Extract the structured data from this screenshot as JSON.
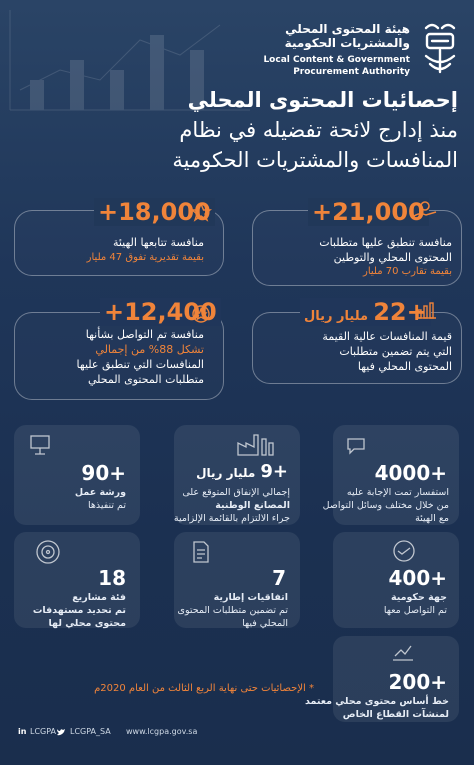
{
  "logo": {
    "ar_line1": "هيئة المحتوى المحلي",
    "ar_line2": "والمشتريات الحكومية",
    "en_line1": "Local Content & Government",
    "en_line2": "Procurement Authority"
  },
  "title": {
    "line1": "إحصائيات المحتوى المحلي",
    "line2": "منذ إدارج لائحة تفضيله في نظام",
    "line3": "المنافسات والمشتريات الحكومية"
  },
  "stats_top": [
    {
      "num": "+21,000",
      "l1": "منافسة تنطبق عليها متطلبات",
      "l2": "المحتوى المحلي والتوطين",
      "l3": "بقيمة تقارب 70 مليار"
    },
    {
      "num": "+18,000",
      "l1": "منافسة تتابعها الهيئة",
      "l2": "بقيمة تقديرية تفوق 47 مليار"
    },
    {
      "num": "+22",
      "num_suffix": "مليار ريال",
      "l1": "قيمة المنافسات عالية القيمة",
      "l2": "التي يتم تضمين متطلبات",
      "l3": "المحتوى المحلي فيها"
    },
    {
      "num": "+12,400",
      "l1": "منافسة تم التواصل بشأنها",
      "l2": "تشكل 88% من إجمالي",
      "l3": "المنافسات التي تنطبق عليها",
      "l4": "متطلبات المحتوى المحلي"
    }
  ],
  "tiles": [
    {
      "num": "4000+",
      "l1": "استفسار تمت الإجابة عليه",
      "l2": "من خلال مختلف وسائل التواصل",
      "l3": "مع الهيئة"
    },
    {
      "num": "+9",
      "num_suffix": "مليار ريال",
      "l1": "إجمالي الإنفاق المتوقع على",
      "l2": "المصانع الوطنية",
      "l3": "جراء الالتزام بالقائمة الإلزامية"
    },
    {
      "num": "90+",
      "l1": "ورشة عمل",
      "l2": "تم تنفيذها"
    },
    {
      "num": "400+",
      "l1": "جهة حكومية",
      "l2": "تم التواصل معها"
    },
    {
      "num": "7",
      "l1": "اتفاقيات إطارية",
      "l2": "تم تضمين متطلبات المحتوى",
      "l3": "المحلي فيها"
    },
    {
      "num": "18",
      "l1": "فئة مشاريع",
      "l2": "تم تحديد مستهدفات",
      "l3": "محتوى محلي لها"
    },
    {
      "num": "200+",
      "l1": "خط أساس محتوى محلي معتمد",
      "l2": "لمنشآت القطاع الخاص"
    }
  ],
  "note": "* الإحصائيات حتى نهاية الربع الثالث من العام 2020م",
  "footer": {
    "linkedin": "LCGPA",
    "twitter": "LCGPA_SA",
    "website": "www.lcgpa.gov.sa"
  },
  "colors": {
    "accent": "#f0843a",
    "background": "#1d3355"
  }
}
